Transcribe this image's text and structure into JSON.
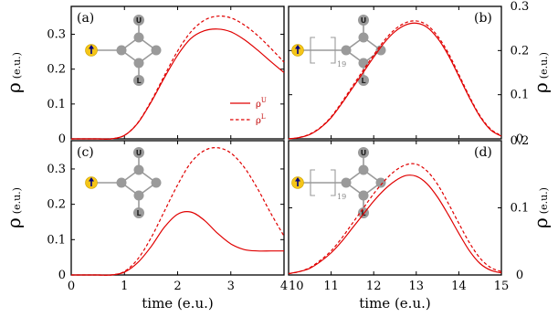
{
  "chart_data": [
    {
      "panel_label": "(a)",
      "type": "line",
      "xlim": [
        0,
        4
      ],
      "ylim": [
        0,
        0.38
      ],
      "x_ticks": [
        0,
        1,
        2,
        3,
        4
      ],
      "y_ticks": [
        0,
        0.1,
        0.2,
        0.3
      ],
      "y_tick_labels": [
        "0",
        "0.1",
        "0.2",
        "0.3"
      ],
      "ylabel": "ρ",
      "ylabel_unit": "(e.u.)",
      "y_axis_side": "left",
      "inset": {
        "site_top": "U",
        "site_bottom": "L",
        "chain_repeat": ""
      },
      "legend": {
        "position": "center-right",
        "entries": [
          {
            "base": "ρ",
            "sup": "U",
            "style": "solid"
          },
          {
            "base": "ρ",
            "sup": "L",
            "style": "dashed"
          }
        ]
      },
      "series": [
        {
          "name": "ρU",
          "style": "solid",
          "x": [
            0,
            0.25,
            0.5,
            0.75,
            1,
            1.25,
            1.5,
            1.75,
            2,
            2.25,
            2.5,
            2.75,
            3,
            3.25,
            3.5,
            3.75,
            4
          ],
          "y": [
            0,
            0,
            0,
            0,
            0.01,
            0.045,
            0.105,
            0.175,
            0.24,
            0.288,
            0.31,
            0.315,
            0.307,
            0.285,
            0.255,
            0.222,
            0.19
          ]
        },
        {
          "name": "ρL",
          "style": "dashed",
          "x": [
            0,
            0.25,
            0.5,
            0.75,
            1,
            1.25,
            1.5,
            1.75,
            2,
            2.25,
            2.5,
            2.75,
            3,
            3.25,
            3.5,
            3.75,
            4
          ],
          "y": [
            0,
            0,
            0,
            0,
            0.01,
            0.046,
            0.108,
            0.181,
            0.252,
            0.307,
            0.34,
            0.352,
            0.347,
            0.327,
            0.297,
            0.26,
            0.22
          ]
        }
      ]
    },
    {
      "panel_label": "(b)",
      "type": "line",
      "xlim": [
        10,
        15
      ],
      "ylim": [
        0,
        0.3
      ],
      "x_ticks": [
        10,
        11,
        12,
        13,
        14,
        15
      ],
      "y_ticks": [
        0,
        0.1,
        0.2,
        0.3
      ],
      "y_tick_labels": [
        "0",
        "0.1",
        "0.2",
        "0.3"
      ],
      "ylabel": "ρ",
      "ylabel_unit": "(e.u.)",
      "y_axis_side": "right",
      "inset": {
        "site_top": "U",
        "site_bottom": "L",
        "chain_repeat": "19"
      },
      "series": [
        {
          "name": "ρU",
          "style": "solid",
          "x": [
            10,
            10.25,
            10.5,
            10.75,
            11,
            11.25,
            11.5,
            11.75,
            12,
            12.25,
            12.5,
            12.75,
            13,
            13.25,
            13.5,
            13.75,
            14,
            14.25,
            14.5,
            14.75,
            15
          ],
          "y": [
            0,
            0.003,
            0.01,
            0.025,
            0.048,
            0.08,
            0.115,
            0.15,
            0.185,
            0.218,
            0.243,
            0.258,
            0.262,
            0.253,
            0.228,
            0.19,
            0.142,
            0.093,
            0.05,
            0.02,
            0.006
          ]
        },
        {
          "name": "ρL",
          "style": "dashed",
          "x": [
            10,
            10.25,
            10.5,
            10.75,
            11,
            11.25,
            11.5,
            11.75,
            12,
            12.25,
            12.5,
            12.75,
            13,
            13.25,
            13.5,
            13.75,
            14,
            14.25,
            14.5,
            14.75,
            15
          ],
          "y": [
            0,
            0.003,
            0.011,
            0.026,
            0.05,
            0.083,
            0.119,
            0.155,
            0.19,
            0.223,
            0.248,
            0.263,
            0.267,
            0.258,
            0.233,
            0.195,
            0.146,
            0.096,
            0.052,
            0.022,
            0.007
          ]
        }
      ]
    },
    {
      "panel_label": "(c)",
      "type": "line",
      "xlim": [
        0,
        4
      ],
      "ylim": [
        0,
        0.38
      ],
      "x_ticks": [
        0,
        1,
        2,
        3,
        4
      ],
      "x_tick_labels": [
        "0",
        "1",
        "2",
        "3",
        "4"
      ],
      "xlabel": "time (e.u.)",
      "y_ticks": [
        0,
        0.1,
        0.2,
        0.3
      ],
      "y_tick_labels": [
        "0",
        "0.1",
        "0.2",
        "0.3"
      ],
      "ylabel": "ρ",
      "ylabel_unit": "(e.u.)",
      "y_axis_side": "left",
      "inset": {
        "site_top": "U",
        "site_bottom": "L",
        "chain_repeat": ""
      },
      "series": [
        {
          "name": "ρU",
          "style": "solid",
          "x": [
            0,
            0.25,
            0.5,
            0.75,
            1,
            1.25,
            1.5,
            1.75,
            2,
            2.25,
            2.5,
            2.75,
            3,
            3.25,
            3.5,
            3.75,
            4
          ],
          "y": [
            0,
            0,
            0,
            0,
            0.008,
            0.035,
            0.08,
            0.135,
            0.172,
            0.178,
            0.155,
            0.118,
            0.088,
            0.072,
            0.068,
            0.068,
            0.068
          ]
        },
        {
          "name": "ρL",
          "style": "dashed",
          "x": [
            0,
            0.25,
            0.5,
            0.75,
            1,
            1.25,
            1.5,
            1.75,
            2,
            2.25,
            2.5,
            2.75,
            3,
            3.25,
            3.5,
            3.75,
            4
          ],
          "y": [
            0,
            0,
            0,
            0,
            0.01,
            0.045,
            0.105,
            0.18,
            0.255,
            0.318,
            0.352,
            0.36,
            0.345,
            0.305,
            0.245,
            0.175,
            0.11
          ]
        }
      ]
    },
    {
      "panel_label": "(d)",
      "type": "line",
      "xlim": [
        10,
        15
      ],
      "ylim": [
        0,
        0.2
      ],
      "x_ticks": [
        10,
        11,
        12,
        13,
        14,
        15
      ],
      "x_tick_labels": [
        "10",
        "11",
        "12",
        "13",
        "14",
        "15"
      ],
      "xlabel": "time (e.u.)",
      "y_ticks": [
        0,
        0.1,
        0.2
      ],
      "y_tick_labels": [
        "0",
        "0.1",
        "0.2"
      ],
      "ylabel": "ρ",
      "ylabel_unit": "(e.u.)",
      "y_axis_side": "right",
      "inset": {
        "site_top": "U",
        "site_bottom": "L",
        "chain_repeat": "19"
      },
      "series": [
        {
          "name": "ρU",
          "style": "solid",
          "x": [
            10,
            10.25,
            10.5,
            10.75,
            11,
            11.25,
            11.5,
            11.75,
            12,
            12.25,
            12.5,
            12.75,
            13,
            13.25,
            13.5,
            13.75,
            14,
            14.25,
            14.5,
            14.75,
            15
          ],
          "y": [
            0.002,
            0.005,
            0.01,
            0.02,
            0.033,
            0.05,
            0.07,
            0.09,
            0.11,
            0.127,
            0.14,
            0.148,
            0.147,
            0.136,
            0.116,
            0.09,
            0.062,
            0.036,
            0.017,
            0.007,
            0.003
          ]
        },
        {
          "name": "ρL",
          "style": "dashed",
          "x": [
            10,
            10.25,
            10.5,
            10.75,
            11,
            11.25,
            11.5,
            11.75,
            12,
            12.25,
            12.5,
            12.75,
            13,
            13.25,
            13.5,
            13.75,
            14,
            14.25,
            14.5,
            14.75,
            15
          ],
          "y": [
            0.002,
            0.005,
            0.011,
            0.022,
            0.036,
            0.055,
            0.077,
            0.099,
            0.121,
            0.14,
            0.155,
            0.164,
            0.165,
            0.155,
            0.135,
            0.107,
            0.077,
            0.048,
            0.025,
            0.011,
            0.005
          ]
        }
      ]
    }
  ],
  "colors": {
    "curve": "#e00000",
    "atom_site": "#f5c518",
    "atom": "#9a9a9a",
    "spin_arrow": "#000080"
  }
}
